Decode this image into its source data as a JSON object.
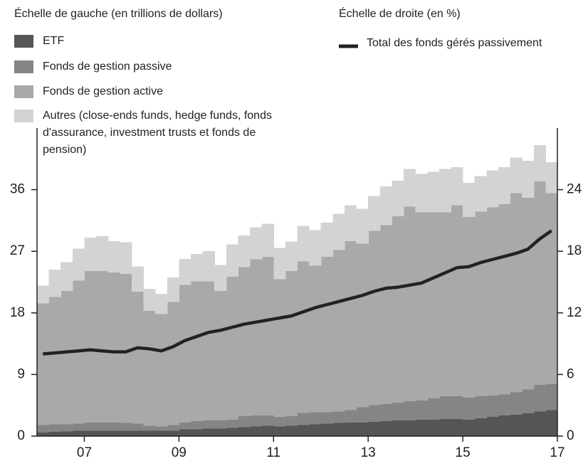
{
  "chart_data": {
    "type": "stacked-area-line",
    "y_label": "Échelle de gauche (en trillions de dollars)",
    "y2_label": "Échelle de droite (en %)",
    "x": [
      2006,
      2006.25,
      2006.5,
      2006.75,
      2007,
      2007.25,
      2007.5,
      2007.75,
      2008,
      2008.25,
      2008.5,
      2008.75,
      2009,
      2009.25,
      2009.5,
      2009.75,
      2010,
      2010.25,
      2010.5,
      2010.75,
      2011,
      2011.25,
      2011.5,
      2011.75,
      2012,
      2012.25,
      2012.5,
      2012.75,
      2013,
      2013.25,
      2013.5,
      2013.75,
      2014,
      2014.25,
      2014.5,
      2014.75,
      2015,
      2015.25,
      2015.5,
      2015.75,
      2016,
      2016.25,
      2016.5,
      2016.75
    ],
    "xlim": [
      2006,
      2017
    ],
    "xticks": [
      {
        "value": 2007,
        "label": "07"
      },
      {
        "value": 2009,
        "label": "09"
      },
      {
        "value": 2011,
        "label": "11"
      },
      {
        "value": 2013,
        "label": "13"
      },
      {
        "value": 2015,
        "label": "15"
      },
      {
        "value": 2017,
        "label": "17"
      }
    ],
    "ylim": [
      0,
      45
    ],
    "yticks": [
      0,
      9,
      18,
      27,
      36
    ],
    "y2lim": [
      0,
      30
    ],
    "y2ticks": [
      0,
      6,
      12,
      18,
      24
    ],
    "series": [
      {
        "name": "ETF",
        "color": "#555555",
        "values": [
          0.5,
          0.6,
          0.7,
          0.8,
          0.8,
          0.8,
          0.8,
          0.8,
          0.8,
          0.8,
          0.8,
          0.8,
          1.0,
          1.0,
          1.1,
          1.1,
          1.2,
          1.3,
          1.4,
          1.5,
          1.4,
          1.5,
          1.6,
          1.7,
          1.8,
          1.9,
          2.0,
          2.0,
          2.1,
          2.2,
          2.3,
          2.3,
          2.4,
          2.4,
          2.5,
          2.5,
          2.4,
          2.6,
          2.8,
          3.0,
          3.1,
          3.3,
          3.6,
          3.8
        ]
      },
      {
        "name": "Fonds de gestion passive",
        "color": "#858585",
        "values": [
          1.1,
          1.1,
          1.0,
          1.0,
          1.2,
          1.2,
          1.2,
          1.1,
          1.0,
          0.7,
          0.6,
          0.8,
          1.0,
          1.2,
          1.2,
          1.2,
          1.2,
          1.6,
          1.6,
          1.5,
          1.4,
          1.4,
          1.8,
          1.8,
          1.7,
          1.7,
          1.8,
          2.2,
          2.4,
          2.5,
          2.6,
          2.8,
          2.8,
          3.1,
          3.3,
          3.3,
          3.2,
          3.2,
          3.1,
          3.1,
          3.3,
          3.5,
          3.9,
          3.8
        ]
      },
      {
        "name": "Fonds de gestion active",
        "color": "#a9a9a9",
        "values": [
          17.8,
          18.6,
          19.5,
          20.9,
          22.1,
          22.1,
          21.9,
          21.8,
          19.3,
          16.8,
          16.4,
          18.0,
          20.1,
          20.4,
          20.3,
          18.9,
          20.9,
          21.8,
          22.8,
          23.2,
          20.1,
          21.2,
          22.1,
          21.4,
          22.7,
          23.6,
          24.7,
          23.9,
          25.5,
          26.1,
          27.2,
          28.4,
          27.5,
          27.2,
          26.9,
          27.9,
          26.4,
          27.0,
          27.5,
          27.8,
          29.1,
          28.0,
          29.7,
          27.9
        ]
      },
      {
        "name": "Autres (close-ends funds, hedge funds, fonds d'assurance, investment trusts et fonds de pension)",
        "color": "#d3d3d3",
        "values": [
          2.6,
          4.0,
          4.2,
          4.7,
          4.9,
          5.1,
          4.6,
          4.6,
          3.7,
          3.2,
          3.0,
          3.6,
          3.8,
          4.0,
          4.4,
          3.8,
          4.7,
          4.6,
          4.7,
          4.8,
          4.6,
          4.3,
          5.2,
          5.2,
          5.0,
          5.3,
          5.2,
          5.1,
          5.1,
          5.7,
          5.2,
          5.5,
          5.6,
          5.9,
          6.3,
          5.6,
          5.0,
          5.2,
          5.4,
          5.4,
          5.2,
          5.4,
          5.3,
          4.5
        ]
      },
      {
        "name": "Total des fonds gérés passivement",
        "color": "#222222",
        "axis": "y2",
        "values": [
          8.0,
          8.1,
          8.2,
          8.3,
          8.4,
          8.3,
          8.2,
          8.2,
          8.6,
          8.5,
          8.3,
          8.7,
          9.3,
          9.7,
          10.1,
          10.3,
          10.6,
          10.9,
          11.1,
          11.3,
          11.5,
          11.7,
          12.1,
          12.5,
          12.8,
          13.1,
          13.4,
          13.7,
          14.1,
          14.4,
          14.5,
          14.7,
          14.9,
          15.4,
          15.9,
          16.4,
          16.5,
          16.9,
          17.2,
          17.5,
          17.8,
          18.2,
          19.2,
          20.0
        ]
      }
    ]
  }
}
